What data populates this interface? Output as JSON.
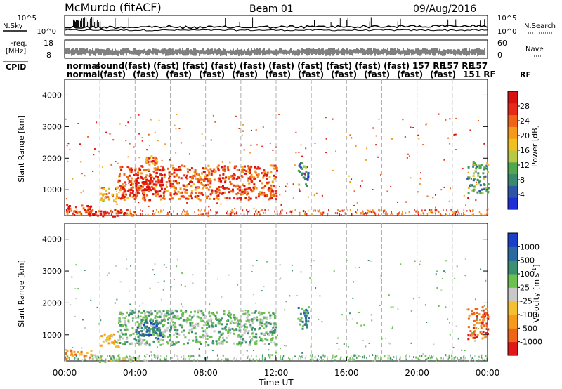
{
  "header": {
    "station": "McMurdo (fitACF)",
    "beam": "Beam 01",
    "date": "09/Aug/2016"
  },
  "side_labels": {
    "nsky": "N.Sky",
    "nsearch": "N.Search",
    "freq_line1": "Freq.",
    "freq_line2": "[MHz]",
    "nave": "Nave",
    "cpid": "CPID",
    "rf": "RF"
  },
  "noise_axis": {
    "ticks_left": [
      "10^5",
      "10^0"
    ],
    "ticks_right": [
      "10^5",
      "10^0"
    ]
  },
  "freq_axis": {
    "ticks": [
      "18",
      "8"
    ],
    "nave_ticks": [
      "60",
      "0"
    ]
  },
  "cpid_row": {
    "top_labels": [
      "normal",
      "sound",
      "(fast)",
      "(fast)",
      "(fast)",
      "(fast)",
      "(fast)",
      "(fast)",
      "(fast)",
      "(fast)",
      "(fast)",
      "(fast)",
      "157 RF",
      "157 RF",
      "157"
    ],
    "bottom_labels": [
      "normal",
      "(fast)",
      "(fast)",
      "(fast)",
      "(fast)",
      "(fast)",
      "(fast)",
      "(fast)",
      "(fast)",
      "(fast)",
      "(fast)",
      "(fast)",
      "151 RF"
    ]
  },
  "chart_data": [
    {
      "type": "heatmap",
      "name": "Power panel",
      "ylabel": "Slant Range [km]",
      "ylim": [
        180,
        4500
      ],
      "yticks": [
        1000,
        2000,
        3000,
        4000
      ],
      "xlabel": "",
      "xlim_hours": [
        0,
        24
      ],
      "colorbar": {
        "label": "Power [dB]",
        "ticks": [
          "4",
          "8",
          "12",
          "16",
          "20",
          "24",
          "28"
        ],
        "colors": [
          "#1f2fd8",
          "#2d56a8",
          "#3a8870",
          "#4fa84e",
          "#b6c844",
          "#f0c020",
          "#f59a1a",
          "#f06418",
          "#e82818",
          "#d81010"
        ]
      },
      "regions": [
        {
          "t0": 3.0,
          "t1": 12.0,
          "r0": 700,
          "r1": 1800,
          "value": 22
        },
        {
          "t0": 4.0,
          "t1": 5.5,
          "r0": 900,
          "r1": 1500,
          "value": 28
        },
        {
          "t0": 2.0,
          "t1": 3.0,
          "r0": 650,
          "r1": 1100,
          "value": 18
        },
        {
          "t0": 4.5,
          "t1": 5.2,
          "r0": 1800,
          "r1": 2100,
          "value": 20
        },
        {
          "t0": 13.2,
          "t1": 13.8,
          "r0": 1100,
          "r1": 1900,
          "value": 6
        },
        {
          "t0": 22.8,
          "t1": 24.0,
          "r0": 900,
          "r1": 1900,
          "value": 8
        },
        {
          "t0": 0.0,
          "t1": 1.5,
          "r0": 250,
          "r1": 550,
          "value": 24
        },
        {
          "t0": 1.5,
          "t1": 4.0,
          "r0": 180,
          "r1": 400,
          "value": 26
        }
      ]
    },
    {
      "type": "heatmap",
      "name": "Velocity panel",
      "ylabel": "Slant Range [km]",
      "ylim": [
        180,
        4500
      ],
      "yticks": [
        1000,
        2000,
        3000,
        4000
      ],
      "xlabel": "Time UT",
      "xticks": [
        "00:00",
        "04:00",
        "08:00",
        "12:00",
        "16:00",
        "20:00",
        "00:00"
      ],
      "xlim_hours": [
        0,
        24
      ],
      "colorbar": {
        "label": "Velocity [m s^-1]",
        "ticks": [
          "1000",
          "500",
          "100",
          "25",
          "-25",
          "-100",
          "-500",
          "-1000"
        ],
        "colors": [
          "#1a3fc8",
          "#2a6aa0",
          "#3a9070",
          "#6cc050",
          "#c8c8c8",
          "#f5c030",
          "#f59a1a",
          "#f06418",
          "#e01818"
        ]
      },
      "regions": [
        {
          "t0": 3.0,
          "t1": 12.0,
          "r0": 700,
          "r1": 1800,
          "value": 50
        },
        {
          "t0": 4.0,
          "t1": 5.5,
          "r0": 900,
          "r1": 1500,
          "value": 300
        },
        {
          "t0": 2.0,
          "t1": 3.0,
          "r0": 650,
          "r1": 1100,
          "value": -50
        },
        {
          "t0": 13.2,
          "t1": 13.8,
          "r0": 1100,
          "r1": 1900,
          "value": 150
        },
        {
          "t0": 22.8,
          "t1": 24.0,
          "r0": 900,
          "r1": 1900,
          "value": -400
        },
        {
          "t0": 0.0,
          "t1": 1.5,
          "r0": 250,
          "r1": 550,
          "value": -80
        },
        {
          "t0": 1.5,
          "t1": 4.0,
          "r0": 180,
          "r1": 400,
          "value": 10
        }
      ]
    }
  ]
}
